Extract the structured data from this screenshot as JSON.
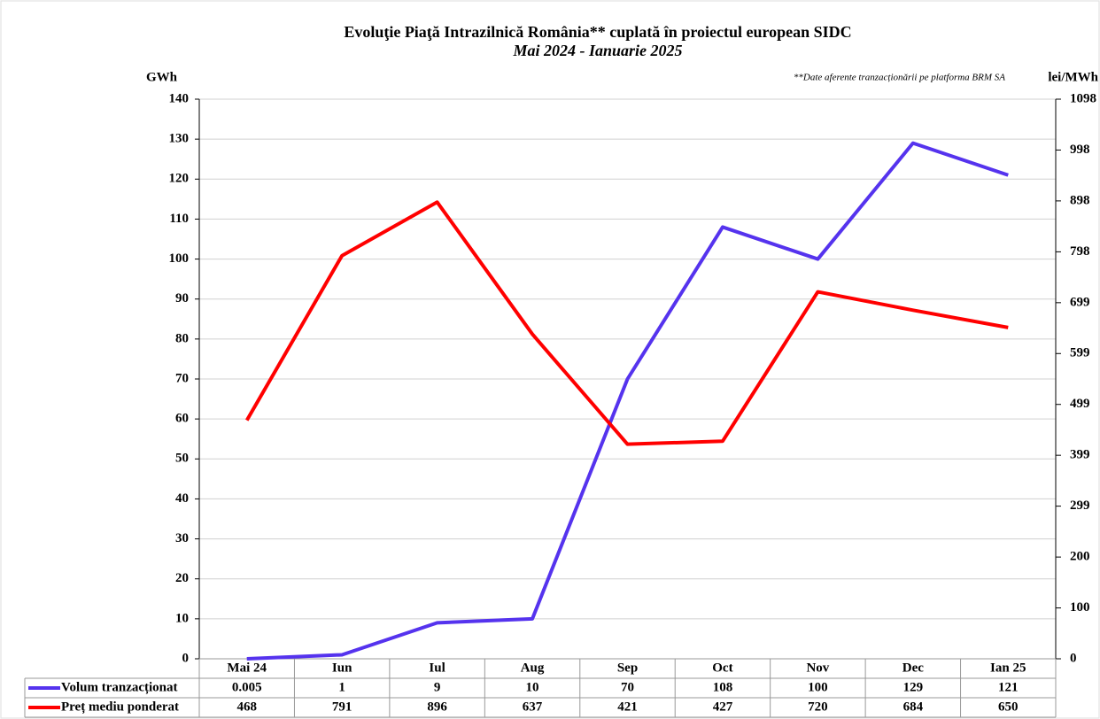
{
  "chart_data": {
    "type": "line",
    "title": "Evoluţie Piaţă Intrazilnică România** cuplată în proiectul  european SIDC",
    "subtitle": "Mai 2024 - Ianuarie 2025",
    "note": "**Date aferente tranzacționării pe platforma BRM SA",
    "y_label": "GWh",
    "y2_label": "lei/MWh",
    "categories": [
      "Mai 24",
      "Iun",
      "Iul",
      "Aug",
      "Sep",
      "Oct",
      "Nov",
      "Dec",
      "Ian 25"
    ],
    "series": [
      {
        "name": "Volum tranzacționat",
        "color": "#5533ee",
        "values": [
          0.005,
          1,
          9,
          10,
          70,
          108,
          100,
          129,
          121
        ]
      },
      {
        "name": "Preț mediu ponderat",
        "color": "#ff0000",
        "axis": "y2",
        "values": [
          468,
          791,
          896,
          637,
          421,
          427,
          720,
          684,
          650
        ]
      }
    ],
    "ylim": [
      0,
      140
    ],
    "yticks": [
      0,
      10,
      20,
      30,
      40,
      50,
      60,
      70,
      80,
      90,
      100,
      110,
      120,
      130,
      140
    ],
    "y2lim": [
      0,
      1098
    ],
    "y2ticks": [
      0,
      {
        "value": 99.8,
        "label": "100"
      },
      {
        "value": 199.6,
        "label": "200"
      },
      {
        "value": 299.5,
        "label": "299"
      },
      {
        "value": 399.3,
        "label": "399"
      },
      {
        "value": 499.1,
        "label": "499"
      },
      {
        "value": 598.9,
        "label": "599"
      },
      {
        "value": 698.7,
        "label": "699"
      },
      {
        "value": 798.5,
        "label": "798"
      },
      {
        "value": 898.4,
        "label": "898"
      },
      {
        "value": 998.2,
        "label": "998"
      },
      1098
    ],
    "grid": true,
    "data_table": true
  }
}
